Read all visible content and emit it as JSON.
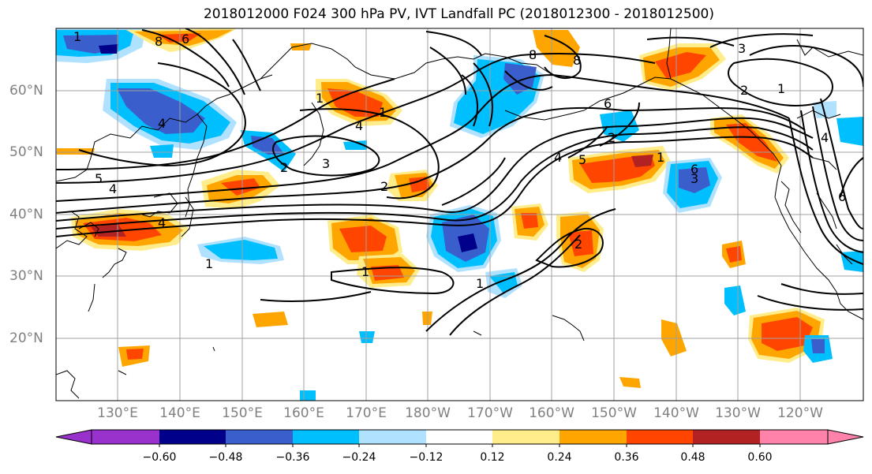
{
  "figure": {
    "title": "2018012000 F024 300 hPa PV, IVT Landfall PC (2018012300 - 2018012500)"
  },
  "map": {
    "lat_labels": [
      "60°N",
      "50°N",
      "40°N",
      "30°N",
      "20°N"
    ],
    "lon_labels": [
      "130°E",
      "140°E",
      "150°E",
      "160°E",
      "170°E",
      "180°W",
      "170°W",
      "160°W",
      "150°W",
      "140°W",
      "130°W",
      "120°W"
    ],
    "contour_labels": [
      "8",
      "8",
      "8",
      "6",
      "5",
      "4",
      "4",
      "3",
      "3",
      "2",
      "2",
      "1",
      "1",
      "1",
      "5",
      "4",
      "2",
      "6",
      "1",
      "4",
      "6",
      "3",
      "2",
      "1",
      "4",
      "4",
      "6",
      "2",
      "1",
      "1",
      "1"
    ]
  },
  "colorbar": {
    "ticks": [
      "−0.60",
      "−0.48",
      "−0.36",
      "−0.24",
      "−0.12",
      "0.12",
      "0.24",
      "0.36",
      "0.48",
      "0.60"
    ],
    "colors": [
      "#9932cc",
      "#00008b",
      "#3a5fcd",
      "#00bfff",
      "#b0e2ff",
      "#ffffff",
      "#ffec8b",
      "#ffa500",
      "#ff4500",
      "#b22222",
      "#ff82ab"
    ]
  }
}
